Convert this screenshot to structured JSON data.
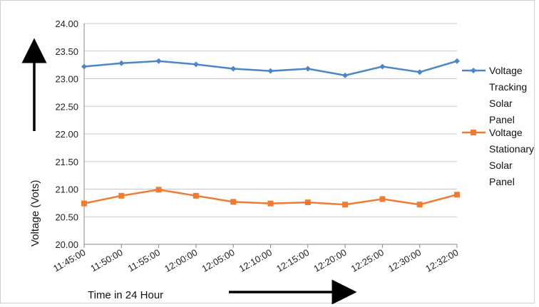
{
  "chart_data": {
    "type": "line",
    "categories": [
      "11:45:00",
      "11:50:00",
      "11:55:00",
      "12:00:00",
      "12:05:00",
      "12:10:00",
      "12:15:00",
      "12:20:00",
      "12:25:00",
      "12:30:00",
      "12:32:00"
    ],
    "series": [
      {
        "name": "Voltage Tracking Solar Panel",
        "legend_lines": [
          "Voltage",
          "Tracking",
          "Solar",
          "Panel"
        ],
        "color": "#4a86c8",
        "marker": "diamond",
        "values": [
          23.22,
          23.28,
          23.32,
          23.26,
          23.18,
          23.14,
          23.18,
          23.06,
          23.22,
          23.12,
          23.32
        ]
      },
      {
        "name": "Voltage Stationary Solar Panel",
        "legend_lines": [
          "Voltage",
          "Stationary",
          "Solar",
          "Panel"
        ],
        "color": "#f07b32",
        "marker": "square",
        "values": [
          20.74,
          20.88,
          20.99,
          20.88,
          20.77,
          20.74,
          20.76,
          20.72,
          20.82,
          20.72,
          20.9
        ]
      }
    ],
    "y_ticks": [
      "20.00",
      "20.50",
      "21.00",
      "21.50",
      "22.00",
      "22.50",
      "23.00",
      "23.50",
      "24.00"
    ],
    "ylim": [
      20.0,
      24.0
    ],
    "ylabel": "Voltage (Vots)",
    "xlabel": "Time in 24 Hour",
    "grid": "horizontal",
    "legend_position": "right"
  }
}
